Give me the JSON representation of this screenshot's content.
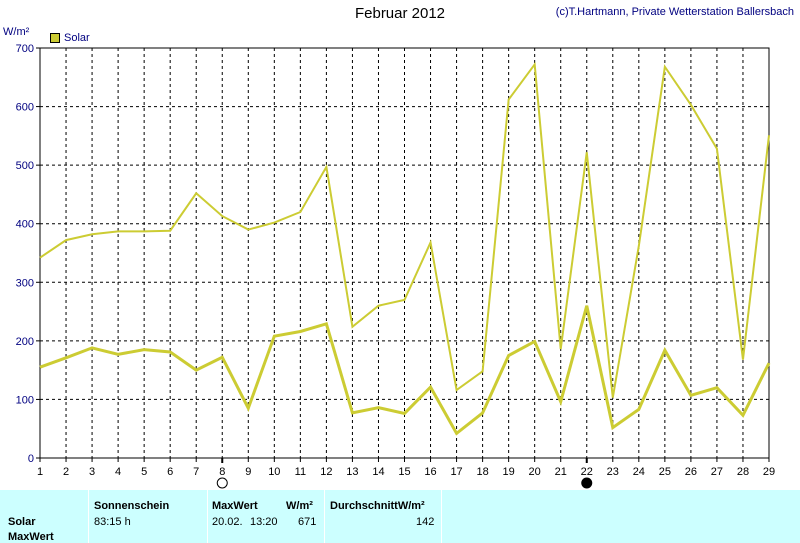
{
  "header": {
    "title": "Februar 2012",
    "copyright": "(c)T.Hartmann, Private Wetterstation Ballersbach",
    "unit": "W/m²"
  },
  "legend": {
    "label": "Solar",
    "swatch_color": "#cccc33"
  },
  "colors": {
    "series": "#cccc33",
    "grid": "#000000",
    "axis_text": "#000080"
  },
  "chart_data": {
    "type": "line",
    "title": "Februar 2012",
    "ylabel": "W/m²",
    "xlabel": "",
    "ylim": [
      0,
      700
    ],
    "yticks": [
      0,
      100,
      200,
      300,
      400,
      500,
      600,
      700
    ],
    "x": [
      1,
      2,
      3,
      4,
      5,
      6,
      7,
      8,
      9,
      10,
      11,
      12,
      13,
      14,
      15,
      16,
      17,
      18,
      19,
      20,
      21,
      22,
      23,
      24,
      25,
      26,
      27,
      28,
      29
    ],
    "grid": true,
    "legend_position": "top-left",
    "series": [
      {
        "name": "Solar",
        "role": "max",
        "values": [
          342,
          372,
          382,
          387,
          387,
          388,
          452,
          413,
          390,
          402,
          420,
          497,
          224,
          260,
          270,
          368,
          116,
          148,
          612,
          672,
          186,
          522,
          103,
          362,
          668,
          603,
          528,
          168,
          551
        ]
      },
      {
        "name": "Solar",
        "role": "avg",
        "values": [
          155,
          171,
          188,
          177,
          185,
          181,
          150,
          172,
          85,
          208,
          216,
          229,
          77,
          86,
          76,
          121,
          42,
          77,
          175,
          199,
          96,
          260,
          52,
          83,
          184,
          107,
          120,
          73,
          162
        ]
      }
    ],
    "markers": [
      {
        "x": 8,
        "symbol": "empty-circle"
      },
      {
        "x": 22,
        "symbol": "filled-circle"
      }
    ]
  },
  "stats": {
    "columns": {
      "sunshine": "Sonnenschein",
      "maxwert": "MaxWert",
      "maxunit": "W/m²",
      "avg": "DurchschnittW/m²"
    },
    "rows": [
      {
        "label": "Solar",
        "sunshine": "83:15 h",
        "max_date": "20.02.",
        "max_time": "13:20",
        "max_value": "671",
        "avg": "142"
      },
      {
        "label": "MaxWert"
      }
    ]
  }
}
